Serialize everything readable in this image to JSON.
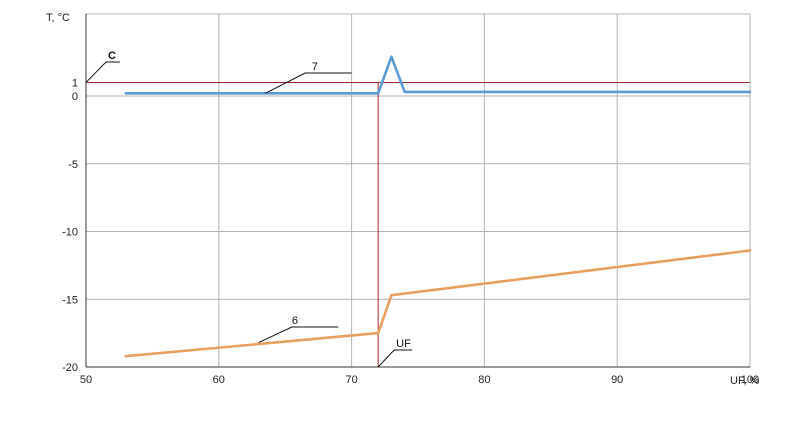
{
  "chart_data": {
    "type": "line",
    "xlabel": "UF, %",
    "ylabel": "T, °C",
    "xlim": [
      50,
      100
    ],
    "ylim": [
      -20,
      2
    ],
    "x_ticks": [
      50,
      60,
      70,
      80,
      90,
      100
    ],
    "y_ticks": [
      -20,
      -15,
      -10,
      -5,
      0,
      1
    ],
    "grid": true,
    "colors": {
      "series_7": "#5b9bd5",
      "series_6": "#e8a060",
      "reference": "#a0292e",
      "grid": "#b4b4b4"
    },
    "series": [
      {
        "name": "7",
        "x": [
          53,
          72,
          73,
          74,
          100
        ],
        "y": [
          0.2,
          0.2,
          2.9,
          0.3,
          0.3
        ]
      },
      {
        "name": "6",
        "x": [
          53,
          72,
          73,
          100
        ],
        "y": [
          -19.2,
          -17.5,
          -14.7,
          -11.4
        ]
      }
    ],
    "reference_lines": [
      {
        "orientation": "horizontal",
        "y": 1,
        "label": "C"
      },
      {
        "orientation": "vertical",
        "x": 72,
        "label": "UF"
      }
    ]
  }
}
